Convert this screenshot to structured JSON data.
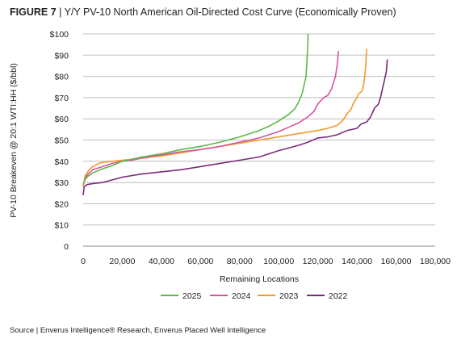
{
  "figure": {
    "label": "FIGURE 7",
    "separator": " | ",
    "title": "Y/Y PV-10 North American Oil-Directed Cost Curve (Economically Proven)"
  },
  "source": "Source | Enverus Intelligence® Research, Enverus Placed Well Intelligence",
  "chart_data": {
    "type": "line",
    "title": "Y/Y PV-10 North American Oil-Directed Cost Curve (Economically Proven)",
    "xlabel": "Remaining Locations",
    "ylabel": "PV-10 Breakeven @ 20:1 WTI:HH ($/bbl)",
    "xlim": [
      0,
      180000
    ],
    "ylim": [
      0,
      100
    ],
    "x_ticks": [
      0,
      20000,
      40000,
      60000,
      80000,
      100000,
      120000,
      140000,
      160000,
      180000
    ],
    "x_tick_labels": [
      "0",
      "20,000",
      "40,000",
      "60,000",
      "80,000",
      "100,000",
      "120,000",
      "140,000",
      "160,000",
      "180,000"
    ],
    "y_ticks": [
      0,
      10,
      20,
      30,
      40,
      50,
      60,
      70,
      80,
      90,
      100
    ],
    "y_tick_labels": [
      "0",
      "$10",
      "$20",
      "$30",
      "$40",
      "$50",
      "$60",
      "$70",
      "$80",
      "$90",
      "$100"
    ],
    "grid": "horizontal",
    "legend": "bottom",
    "series": [
      {
        "name": "2025",
        "color": "#5cb84a",
        "points": [
          [
            0,
            29
          ],
          [
            1000,
            31.5
          ],
          [
            2500,
            33
          ],
          [
            5000,
            34.5
          ],
          [
            10000,
            36.5
          ],
          [
            15000,
            38
          ],
          [
            20000,
            40
          ],
          [
            25000,
            41
          ],
          [
            30000,
            42
          ],
          [
            40000,
            43.5
          ],
          [
            50000,
            45.5
          ],
          [
            60000,
            47
          ],
          [
            70000,
            49
          ],
          [
            80000,
            51.5
          ],
          [
            90000,
            54.5
          ],
          [
            95000,
            56.5
          ],
          [
            100000,
            59
          ],
          [
            105000,
            62
          ],
          [
            108000,
            64.5
          ],
          [
            110000,
            67.5
          ],
          [
            112000,
            72
          ],
          [
            113000,
            76
          ],
          [
            114000,
            80
          ],
          [
            114500,
            88
          ],
          [
            114800,
            94
          ],
          [
            115000,
            100
          ]
        ]
      },
      {
        "name": "2024",
        "color": "#d6569e",
        "points": [
          [
            0,
            29
          ],
          [
            1000,
            32
          ],
          [
            2500,
            34
          ],
          [
            5000,
            36
          ],
          [
            10000,
            37.5
          ],
          [
            15000,
            39
          ],
          [
            20000,
            40
          ],
          [
            25000,
            40.5
          ],
          [
            30000,
            41.5
          ],
          [
            40000,
            43
          ],
          [
            50000,
            44.5
          ],
          [
            60000,
            45.5
          ],
          [
            70000,
            47
          ],
          [
            80000,
            49
          ],
          [
            90000,
            51
          ],
          [
            100000,
            54
          ],
          [
            105000,
            56
          ],
          [
            110000,
            58
          ],
          [
            115000,
            61
          ],
          [
            118000,
            63.5
          ],
          [
            120000,
            67
          ],
          [
            123000,
            70
          ],
          [
            125000,
            71
          ],
          [
            127000,
            74
          ],
          [
            128000,
            77
          ],
          [
            129000,
            80
          ],
          [
            130000,
            86
          ],
          [
            130500,
            92
          ]
        ]
      },
      {
        "name": "2023",
        "color": "#f39a2b",
        "points": [
          [
            0,
            28
          ],
          [
            1000,
            33
          ],
          [
            3000,
            36
          ],
          [
            5000,
            37.5
          ],
          [
            8000,
            39
          ],
          [
            10000,
            39.5
          ],
          [
            15000,
            40
          ],
          [
            20000,
            40.5
          ],
          [
            30000,
            41.5
          ],
          [
            40000,
            42.5
          ],
          [
            50000,
            44
          ],
          [
            60000,
            45.5
          ],
          [
            70000,
            47
          ],
          [
            80000,
            48.5
          ],
          [
            90000,
            50
          ],
          [
            100000,
            51.5
          ],
          [
            110000,
            53
          ],
          [
            120000,
            54.5
          ],
          [
            125000,
            55.5
          ],
          [
            130000,
            57
          ],
          [
            133000,
            59.5
          ],
          [
            135000,
            62.5
          ],
          [
            137000,
            64.5
          ],
          [
            138000,
            67
          ],
          [
            140000,
            70
          ],
          [
            141000,
            72
          ],
          [
            142000,
            72.5
          ],
          [
            143000,
            74
          ],
          [
            143500,
            77
          ],
          [
            144000,
            80
          ],
          [
            144500,
            86
          ],
          [
            145000,
            93
          ]
        ]
      },
      {
        "name": "2022",
        "color": "#7b2a7e",
        "points": [
          [
            0,
            24
          ],
          [
            500,
            28
          ],
          [
            2000,
            29
          ],
          [
            5000,
            29.5
          ],
          [
            10000,
            30
          ],
          [
            20000,
            32.5
          ],
          [
            30000,
            34
          ],
          [
            40000,
            35
          ],
          [
            50000,
            36
          ],
          [
            60000,
            37.5
          ],
          [
            70000,
            39
          ],
          [
            80000,
            40.5
          ],
          [
            90000,
            42
          ],
          [
            100000,
            45
          ],
          [
            110000,
            47.5
          ],
          [
            115000,
            49
          ],
          [
            120000,
            51
          ],
          [
            125000,
            51.5
          ],
          [
            130000,
            52.5
          ],
          [
            135000,
            54.5
          ],
          [
            140000,
            55.5
          ],
          [
            142000,
            57.5
          ],
          [
            145000,
            58.5
          ],
          [
            147000,
            61
          ],
          [
            149000,
            65
          ],
          [
            151000,
            67
          ],
          [
            152000,
            70
          ],
          [
            153000,
            74
          ],
          [
            154000,
            78
          ],
          [
            155000,
            82
          ],
          [
            155500,
            88
          ]
        ]
      }
    ]
  }
}
